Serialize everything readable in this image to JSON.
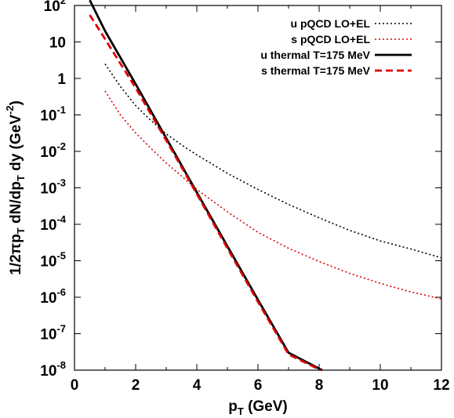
{
  "chart_data": {
    "type": "line",
    "xlabel": {
      "main": "p",
      "sub": "T",
      "rest": " (GeV)"
    },
    "ylabel": {
      "parts": [
        {
          "t": "1/2",
          "s": "n"
        },
        {
          "t": "π",
          "s": "n"
        },
        {
          "t": "p",
          "s": "n"
        },
        {
          "t": "T",
          "s": "sub"
        },
        {
          "t": " dN/dp",
          "s": "n"
        },
        {
          "t": "T",
          "s": "sub"
        },
        {
          "t": " dy (GeV",
          "s": "n"
        },
        {
          "t": "-2",
          "s": "sup"
        },
        {
          "t": ")",
          "s": "n"
        }
      ]
    },
    "xlim": [
      0,
      12
    ],
    "ylim": [
      1e-08,
      100
    ],
    "yscale": "log",
    "xticks": [
      {
        "v": 0,
        "label": "0"
      },
      {
        "v": 2,
        "label": "2"
      },
      {
        "v": 4,
        "label": "4"
      },
      {
        "v": 6,
        "label": "6"
      },
      {
        "v": 8,
        "label": "8"
      },
      {
        "v": 10,
        "label": "10"
      },
      {
        "v": 12,
        "label": "12"
      }
    ],
    "yticks": [
      {
        "v": 1e-08,
        "base": "10",
        "exp": "-8"
      },
      {
        "v": 1e-07,
        "base": "10",
        "exp": "-7"
      },
      {
        "v": 1e-06,
        "base": "10",
        "exp": "-6"
      },
      {
        "v": 1e-05,
        "base": "10",
        "exp": "-5"
      },
      {
        "v": 0.0001,
        "base": "10",
        "exp": "-4"
      },
      {
        "v": 0.001,
        "base": "10",
        "exp": "-3"
      },
      {
        "v": 0.01,
        "base": "10",
        "exp": "-2"
      },
      {
        "v": 0.1,
        "base": "10",
        "exp": "-1"
      },
      {
        "v": 1,
        "base": "1",
        "exp": ""
      },
      {
        "v": 10,
        "base": "10",
        "exp": ""
      },
      {
        "v": 100,
        "base": "10",
        "exp": "2"
      }
    ],
    "grid": false,
    "legend_position": "top-right",
    "series": [
      {
        "name": "u pQCD LO+EL",
        "color": "#000000",
        "dash": "dotted",
        "x": [
          1.0,
          1.5,
          2.0,
          2.5,
          3.0,
          3.5,
          4.0,
          5.0,
          6.0,
          7.0,
          8.0,
          9.0,
          10.0,
          11.0,
          12.0
        ],
        "y": [
          2.5,
          0.6,
          0.18,
          0.07,
          0.03,
          0.015,
          0.008,
          0.0025,
          0.0009,
          0.00035,
          0.00015,
          6.8e-05,
          3.5e-05,
          2.1e-05,
          1.2e-05
        ]
      },
      {
        "name": "s pQCD LO+EL",
        "color": "#e00000",
        "dash": "dotted",
        "x": [
          1.0,
          1.5,
          2.0,
          2.5,
          3.0,
          3.5,
          4.0,
          5.0,
          6.0,
          7.0,
          8.0,
          9.0,
          10.0,
          11.0,
          12.0
        ],
        "y": [
          0.45,
          0.1,
          0.032,
          0.012,
          0.0048,
          0.0021,
          0.0009,
          0.00022,
          6e-05,
          2.2e-05,
          9.5e-06,
          4.5e-06,
          2.4e-06,
          1.4e-06,
          9e-07
        ]
      },
      {
        "name": "u thermal T=175 MeV",
        "color": "#000000",
        "dash": "solid",
        "x": [
          0.5,
          1.0,
          2.0,
          3.0,
          4.0,
          5.0,
          6.0,
          7.0,
          8.1
        ],
        "y": [
          140,
          20,
          0.7,
          0.023,
          0.00075,
          2.5e-05,
          8.5e-07,
          3e-08,
          1e-08
        ]
      },
      {
        "name": "s thermal T=175 MeV",
        "color": "#e00000",
        "dash": "dashed",
        "x": [
          0.5,
          1.0,
          2.0,
          3.0,
          4.0,
          5.0,
          6.0,
          7.0,
          8.05
        ],
        "y": [
          55,
          12,
          0.55,
          0.02,
          0.00068,
          2.2e-05,
          7.5e-07,
          2.7e-08,
          1e-08
        ]
      }
    ]
  }
}
